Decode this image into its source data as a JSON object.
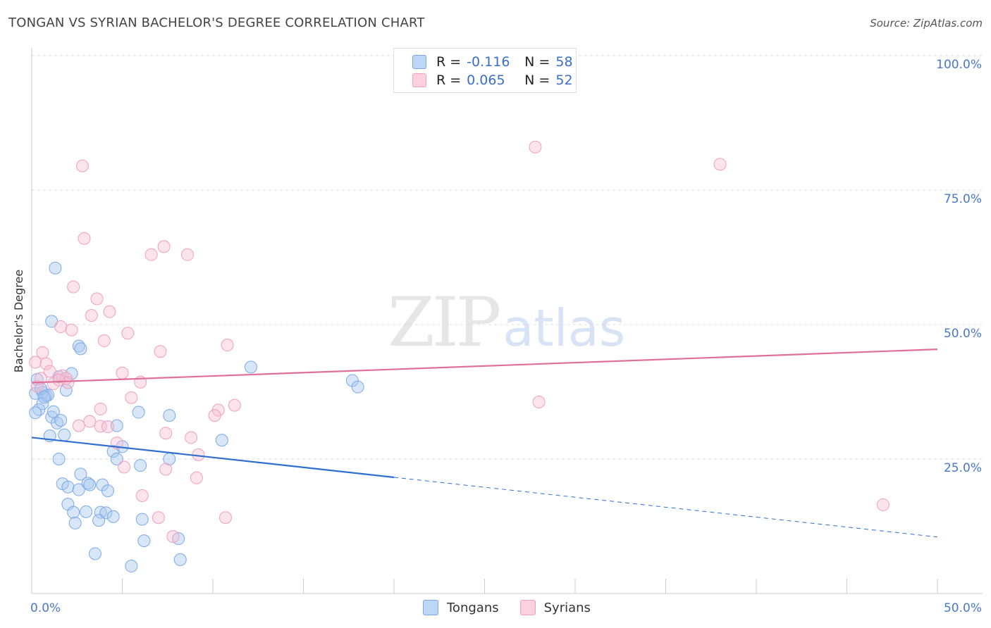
{
  "title": "TONGAN VS SYRIAN BACHELOR'S DEGREE CORRELATION CHART",
  "source": "Source: ZipAtlas.com",
  "watermark": {
    "zip": "ZIP",
    "atlas": "atlas"
  },
  "legend": {
    "rows": [
      {
        "r_label": "R =",
        "r_value": "-0.116",
        "n_label": "N =",
        "n_value": "58",
        "color": "#a8c8f0"
      },
      {
        "r_label": "R =",
        "r_value": "0.065",
        "n_label": "N =",
        "n_value": "52",
        "color": "#f8bcd0"
      }
    ]
  },
  "bottom_legend": {
    "tongans": "Tongans",
    "syrians": "Syrians"
  },
  "chart_data": {
    "type": "scatter",
    "title": "TONGAN VS SYRIAN BACHELOR'S DEGREE CORRELATION CHART",
    "xlabel": "",
    "ylabel": "Bachelor's Degree",
    "xlim": [
      0,
      50
    ],
    "ylim": [
      0,
      100
    ],
    "x_tick_labels": [
      "0.0%",
      "50.0%"
    ],
    "y_tick_labels": [
      "25.0%",
      "50.0%",
      "75.0%",
      "100.0%"
    ],
    "y_ticks": [
      25,
      50,
      75,
      100
    ],
    "series": [
      {
        "name": "Tongans",
        "color": "#7aaae6",
        "trend": {
          "x0": 0,
          "y0": 29.0,
          "x1": 20,
          "y1": 21.6,
          "dash_to_x": 50,
          "dash_to_y": 10.5
        },
        "points": [
          [
            0.2,
            37.2
          ],
          [
            0.4,
            34.2
          ],
          [
            0.3,
            39.8
          ],
          [
            0.6,
            35.3
          ],
          [
            0.8,
            36.8
          ],
          [
            0.6,
            37.4
          ],
          [
            0.2,
            33.6
          ],
          [
            0.9,
            36.9
          ],
          [
            1.1,
            32.8
          ],
          [
            1.2,
            33.8
          ],
          [
            1.4,
            31.7
          ],
          [
            1.6,
            32.2
          ],
          [
            1.0,
            29.3
          ],
          [
            1.8,
            29.5
          ],
          [
            1.9,
            37.8
          ],
          [
            2.2,
            40.9
          ],
          [
            1.3,
            60.5
          ],
          [
            1.1,
            50.6
          ],
          [
            2.6,
            46.0
          ],
          [
            2.7,
            45.5
          ],
          [
            1.5,
            25.0
          ],
          [
            1.7,
            20.4
          ],
          [
            2.0,
            19.8
          ],
          [
            2.6,
            19.3
          ],
          [
            2.7,
            22.2
          ],
          [
            3.1,
            20.5
          ],
          [
            3.2,
            20.2
          ],
          [
            3.9,
            20.2
          ],
          [
            4.2,
            19.1
          ],
          [
            2.0,
            16.6
          ],
          [
            2.3,
            15.1
          ],
          [
            3.0,
            15.2
          ],
          [
            3.8,
            15.1
          ],
          [
            4.1,
            15.0
          ],
          [
            4.5,
            14.3
          ],
          [
            2.4,
            13.1
          ],
          [
            3.7,
            13.6
          ],
          [
            4.5,
            26.4
          ],
          [
            4.7,
            25.0
          ],
          [
            5.0,
            27.3
          ],
          [
            4.7,
            31.2
          ],
          [
            5.9,
            33.7
          ],
          [
            6.0,
            23.8
          ],
          [
            6.1,
            13.8
          ],
          [
            6.2,
            9.8
          ],
          [
            7.6,
            25.0
          ],
          [
            7.6,
            33.1
          ],
          [
            8.1,
            10.2
          ],
          [
            8.2,
            6.3
          ],
          [
            10.5,
            28.5
          ],
          [
            12.1,
            42.1
          ],
          [
            17.7,
            39.6
          ],
          [
            18.0,
            38.4
          ],
          [
            3.5,
            7.4
          ],
          [
            5.5,
            5.1
          ],
          [
            0.5,
            38.1
          ],
          [
            1.5,
            40.3
          ],
          [
            0.7,
            36.5
          ]
        ]
      },
      {
        "name": "Syrians",
        "color": "#f4a0bc",
        "trend": {
          "x0": 0,
          "y0": 39.2,
          "x1": 50,
          "y1": 45.4
        },
        "points": [
          [
            0.2,
            43.0
          ],
          [
            0.6,
            44.8
          ],
          [
            0.8,
            42.7
          ],
          [
            1.0,
            41.3
          ],
          [
            0.3,
            38.5
          ],
          [
            0.5,
            40.0
          ],
          [
            1.2,
            39.0
          ],
          [
            1.7,
            40.5
          ],
          [
            1.9,
            40.0
          ],
          [
            2.0,
            39.2
          ],
          [
            1.5,
            39.7
          ],
          [
            1.6,
            49.6
          ],
          [
            2.2,
            49.0
          ],
          [
            2.3,
            57.0
          ],
          [
            2.8,
            79.5
          ],
          [
            2.9,
            66.0
          ],
          [
            3.3,
            51.7
          ],
          [
            3.6,
            54.8
          ],
          [
            4.0,
            47.0
          ],
          [
            4.3,
            52.4
          ],
          [
            5.3,
            48.4
          ],
          [
            5.0,
            41.0
          ],
          [
            6.0,
            39.3
          ],
          [
            6.6,
            63.0
          ],
          [
            7.3,
            64.5
          ],
          [
            7.1,
            45.0
          ],
          [
            8.6,
            63.0
          ],
          [
            10.8,
            46.2
          ],
          [
            11.2,
            35.0
          ],
          [
            10.3,
            34.1
          ],
          [
            10.1,
            33.1
          ],
          [
            8.8,
            29.0
          ],
          [
            3.2,
            32.0
          ],
          [
            3.8,
            31.1
          ],
          [
            4.7,
            28.0
          ],
          [
            2.6,
            31.2
          ],
          [
            3.8,
            34.3
          ],
          [
            4.2,
            31.0
          ],
          [
            5.5,
            36.4
          ],
          [
            5.1,
            23.5
          ],
          [
            6.1,
            18.2
          ],
          [
            7.4,
            29.8
          ],
          [
            7.4,
            23.1
          ],
          [
            9.2,
            25.8
          ],
          [
            9.1,
            21.5
          ],
          [
            10.7,
            14.1
          ],
          [
            7.0,
            14.1
          ],
          [
            7.8,
            10.6
          ],
          [
            27.8,
            83.0
          ],
          [
            38.0,
            79.8
          ],
          [
            28.0,
            35.6
          ],
          [
            47.0,
            16.5
          ]
        ]
      }
    ]
  }
}
